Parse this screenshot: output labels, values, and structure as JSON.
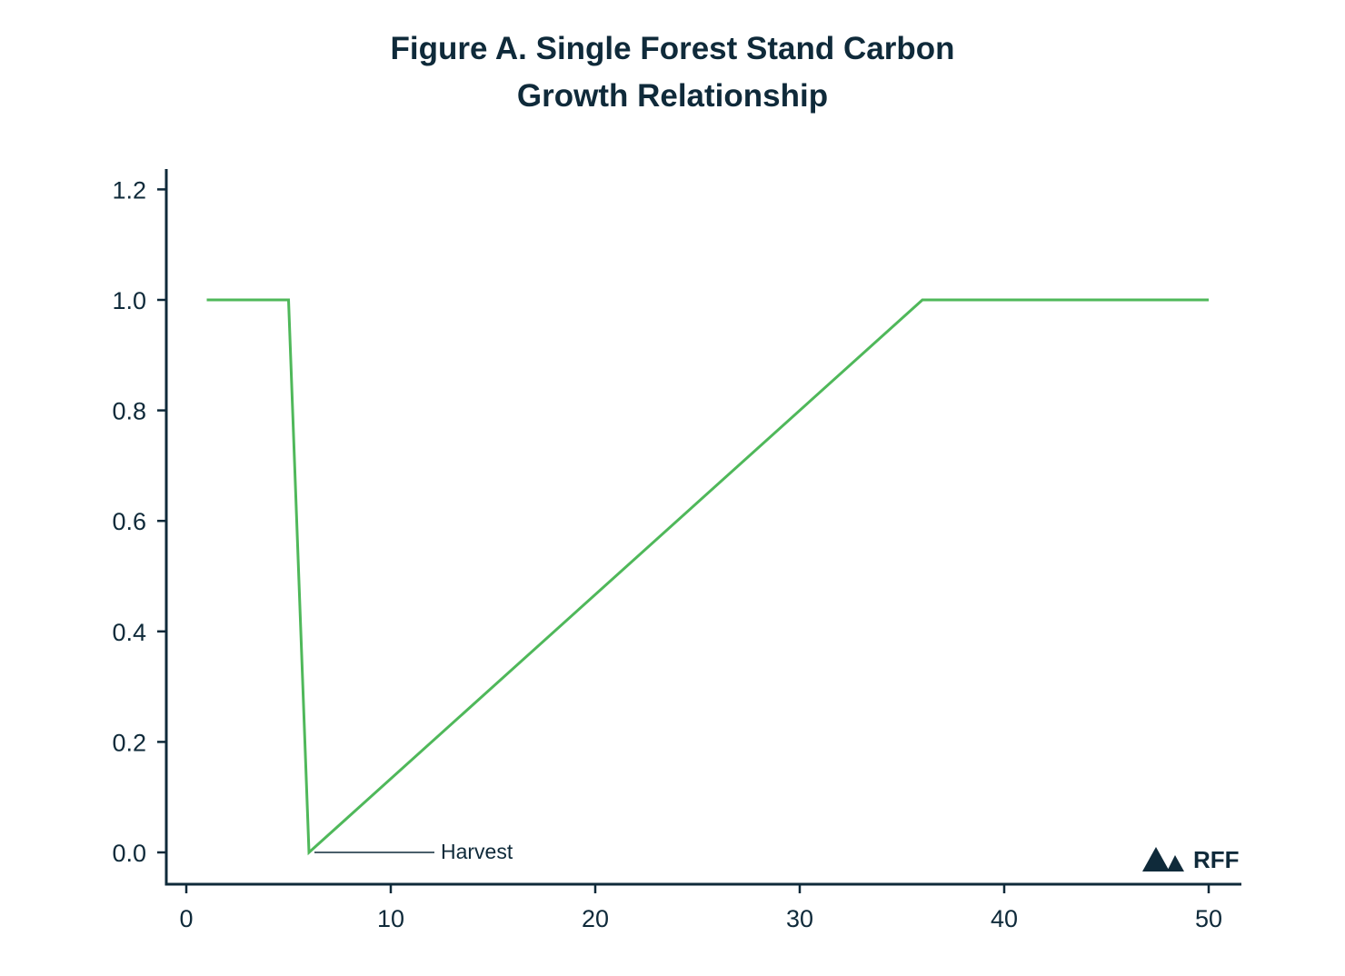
{
  "chart_data": {
    "type": "line",
    "title_lines": [
      "Figure A. Single Forest Stand Carbon",
      "Growth Relationship"
    ],
    "xlabel": "",
    "ylabel": "",
    "xlim": [
      -1,
      51.5
    ],
    "ylim": [
      -0.06,
      1.26
    ],
    "x_ticks": [
      0,
      10,
      20,
      30,
      40,
      50
    ],
    "y_ticks": [
      0.0,
      0.2,
      0.4,
      0.6,
      0.8,
      1.0,
      1.2
    ],
    "x_tick_labels": [
      "0",
      "10",
      "20",
      "30",
      "40",
      "50"
    ],
    "y_tick_labels": [
      "0.0",
      "0.2",
      "0.4",
      "0.6",
      "0.8",
      "1.0",
      "1.2"
    ],
    "grid": false,
    "legend": "none",
    "series": [
      {
        "color": "#4fb85a",
        "points": [
          [
            1,
            1.0
          ],
          [
            5,
            1.0
          ],
          [
            6,
            0.0
          ],
          [
            36,
            1.0
          ],
          [
            50,
            1.0
          ]
        ]
      }
    ],
    "annotations": [
      {
        "text": "Harvest",
        "x": 6,
        "y": 0.0
      }
    ]
  },
  "logo": {
    "text": "RFF",
    "icon": "rff-mountain-icon"
  },
  "colors": {
    "ink": "#0f2a3a",
    "series": "#4fb85a"
  }
}
